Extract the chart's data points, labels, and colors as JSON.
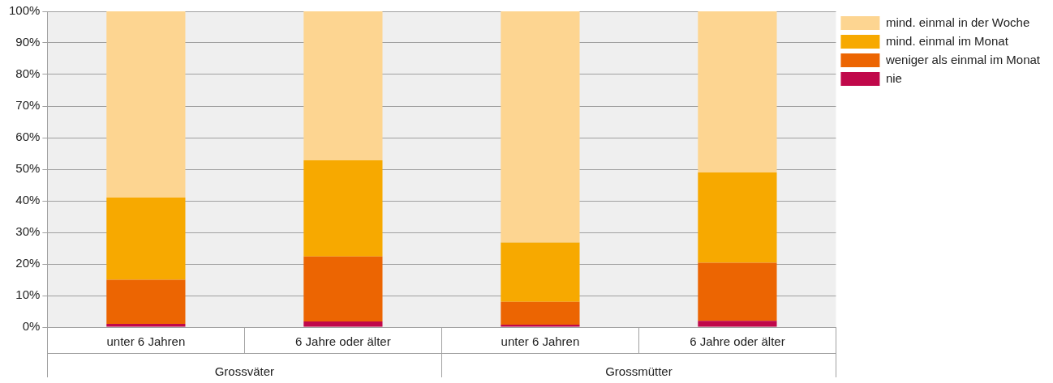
{
  "chart_data": {
    "type": "bar",
    "stacked": true,
    "categories": [
      "unter 6 Jahren",
      "6 Jahre oder älter",
      "unter 6 Jahren",
      "6 Jahre oder älter"
    ],
    "series": [
      {
        "name": "nie",
        "color": "#c0084a",
        "values": [
          1,
          1.8,
          0.8,
          2
        ]
      },
      {
        "name": "weniger als einmal im Monat",
        "color": "#ec6502",
        "values": [
          14,
          20.6,
          7.2,
          18.4
        ]
      },
      {
        "name": "mind. einmal im Monat",
        "color": "#f7a900",
        "values": [
          26,
          30.4,
          18.8,
          28.6
        ]
      },
      {
        "name": "mind. einmal in der Woche",
        "color": "#fdd591",
        "values": [
          59,
          47.2,
          73.2,
          51
        ]
      }
    ],
    "ylim": [
      0,
      100
    ],
    "yticks": [
      {
        "value": 0,
        "label": "0%"
      },
      {
        "value": 10,
        "label": "10%"
      },
      {
        "value": 20,
        "label": "20%"
      },
      {
        "value": 30,
        "label": "30%"
      },
      {
        "value": 40,
        "label": "40%"
      },
      {
        "value": 50,
        "label": "50%"
      },
      {
        "value": 60,
        "label": "60%"
      },
      {
        "value": 70,
        "label": "70%"
      },
      {
        "value": 80,
        "label": "80%"
      },
      {
        "value": 90,
        "label": "90%"
      },
      {
        "value": 100,
        "label": "100%"
      }
    ],
    "grid": "y",
    "legend": "top right",
    "annotations": [
      "Grossväter",
      "Grossmütter"
    ]
  }
}
